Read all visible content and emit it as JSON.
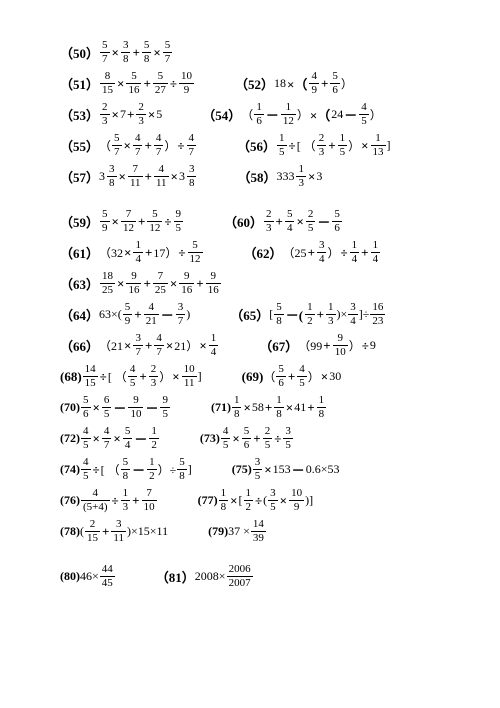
{
  "problems": [
    {
      "n": "50",
      "expr": [
        [
          "f",
          "5",
          "7"
        ],
        [
          "o",
          "×"
        ],
        [
          "f",
          "3",
          "8"
        ],
        [
          "o",
          "+"
        ],
        [
          "f",
          "5",
          "8"
        ],
        [
          "o",
          "×"
        ],
        [
          "f",
          "5",
          "7"
        ]
      ]
    },
    {
      "n": "51",
      "expr": [
        [
          "f",
          "8",
          "15"
        ],
        [
          "o",
          "×"
        ],
        [
          "f",
          "5",
          "16"
        ],
        [
          "o",
          "+"
        ],
        [
          "f",
          "5",
          "27"
        ],
        [
          "o",
          "÷"
        ],
        [
          "f",
          "10",
          "9"
        ]
      ],
      "n2": "52",
      "expr2": [
        [
          "t",
          "18"
        ],
        [
          "o",
          "×（"
        ],
        [
          "f",
          "4",
          "9"
        ],
        [
          "o",
          "+"
        ],
        [
          "f",
          "5",
          "6"
        ],
        [
          "t",
          "）"
        ]
      ]
    },
    {
      "n": "53",
      "expr": [
        [
          "f",
          "2",
          "3"
        ],
        [
          "o",
          "×"
        ],
        [
          "t",
          "7"
        ],
        [
          "o",
          "+"
        ],
        [
          "f",
          "2",
          "3"
        ],
        [
          "o",
          "×"
        ],
        [
          "t",
          "5"
        ]
      ],
      "n2": "54",
      "expr2": [
        [
          "t",
          "（"
        ],
        [
          "f",
          "1",
          "6"
        ],
        [
          "o",
          "－"
        ],
        [
          "f",
          "1",
          "12"
        ],
        [
          "t",
          "）"
        ],
        [
          "o",
          "×（"
        ],
        [
          "t",
          "24"
        ],
        [
          "o",
          "－"
        ],
        [
          "f",
          "4",
          "5"
        ],
        [
          "t",
          "）"
        ]
      ]
    },
    {
      "n": "55",
      "expr": [
        [
          "t",
          "（"
        ],
        [
          "f",
          "5",
          "7"
        ],
        [
          "o",
          "×"
        ],
        [
          "f",
          "4",
          "7"
        ],
        [
          "o",
          "+"
        ],
        [
          "f",
          "4",
          "7"
        ],
        [
          "t",
          "）"
        ],
        [
          "o",
          "÷"
        ],
        [
          "f",
          "4",
          "7"
        ]
      ],
      "n2": "56",
      "expr2": [
        [
          "f",
          "1",
          "5"
        ],
        [
          "o",
          "÷"
        ],
        [
          "t",
          "[ （"
        ],
        [
          "f",
          "2",
          "3"
        ],
        [
          "o",
          "+"
        ],
        [
          "f",
          "1",
          "5"
        ],
        [
          "t",
          "）"
        ],
        [
          "o",
          "×"
        ],
        [
          "f",
          "1",
          "13"
        ],
        [
          "t",
          " ]"
        ]
      ]
    },
    {
      "n": "57",
      "expr": [
        [
          "m",
          "3",
          "3",
          "8"
        ],
        [
          "o",
          "×"
        ],
        [
          "f",
          "7",
          "11"
        ],
        [
          "o",
          "+"
        ],
        [
          "f",
          "4",
          "11"
        ],
        [
          "o",
          "×"
        ],
        [
          "m",
          "3",
          "3",
          "8"
        ]
      ],
      "n2": "58",
      "expr2": [
        [
          "m",
          "333",
          "1",
          "3"
        ],
        [
          "o",
          "×"
        ],
        [
          "t",
          "3"
        ]
      ]
    },
    {
      "gap": true,
      "n": "59",
      "expr": [
        [
          "f",
          "5",
          "9"
        ],
        [
          "o",
          "×"
        ],
        [
          "f",
          "7",
          "12"
        ],
        [
          "o",
          "+"
        ],
        [
          "f",
          "5",
          "12"
        ],
        [
          "o",
          "÷"
        ],
        [
          "f",
          "9",
          "5"
        ]
      ],
      "n2": "60",
      "expr2": [
        [
          "f",
          "2",
          "3"
        ],
        [
          "o",
          "+"
        ],
        [
          "f",
          "5",
          "4"
        ],
        [
          "o",
          "×"
        ],
        [
          "f",
          "2",
          "5"
        ],
        [
          "o",
          "－"
        ],
        [
          "f",
          "5",
          "6"
        ]
      ]
    },
    {
      "n": "61",
      "expr": [
        [
          "t",
          "（32"
        ],
        [
          "o",
          "×"
        ],
        [
          "f",
          "1",
          "4"
        ],
        [
          "o",
          "+"
        ],
        [
          "t",
          "17）"
        ],
        [
          "o",
          "÷"
        ],
        [
          "f",
          "5",
          "12"
        ]
      ],
      "n2": "62",
      "expr2": [
        [
          "t",
          "（25"
        ],
        [
          "o",
          "+"
        ],
        [
          "f",
          "3",
          "4"
        ],
        [
          "t",
          "）"
        ],
        [
          "o",
          "÷"
        ],
        [
          "f",
          "1",
          "4"
        ],
        [
          "o",
          "+"
        ],
        [
          "f",
          "1",
          "4"
        ]
      ]
    },
    {
      "n": "63",
      "expr": [
        [
          "f",
          "18",
          "25"
        ],
        [
          "o",
          "×"
        ],
        [
          "f",
          "9",
          "16"
        ],
        [
          "o",
          "+"
        ],
        [
          "f",
          "7",
          "25"
        ],
        [
          "o",
          "×"
        ],
        [
          "f",
          "9",
          "16"
        ],
        [
          "o",
          "+"
        ],
        [
          "f",
          "9",
          "16"
        ]
      ]
    },
    {
      "n": "64",
      "expr": [
        [
          "t",
          "63×("
        ],
        [
          "f",
          "5",
          "9"
        ],
        [
          "o",
          "+"
        ],
        [
          "f",
          "4",
          "21"
        ],
        [
          "o",
          "－"
        ],
        [
          "f",
          "3",
          "7"
        ],
        [
          "t",
          ")"
        ]
      ],
      "n2": "65",
      "expr2": [
        [
          "t",
          "["
        ],
        [
          "f",
          "5",
          "8"
        ],
        [
          "o",
          "－("
        ],
        [
          "f",
          "1",
          "2"
        ],
        [
          "o",
          "+"
        ],
        [
          "f",
          "1",
          "3"
        ],
        [
          "t",
          ")×"
        ],
        [
          "f",
          "3",
          "4"
        ],
        [
          "t",
          "]÷"
        ],
        [
          "f",
          "16",
          "23"
        ]
      ]
    },
    {
      "n": "66",
      "expr": [
        [
          "t",
          "（21"
        ],
        [
          "o",
          "×"
        ],
        [
          "f",
          "3",
          "7"
        ],
        [
          "o",
          "+"
        ],
        [
          "f",
          "4",
          "7"
        ],
        [
          "o",
          "×"
        ],
        [
          "t",
          "21）"
        ],
        [
          "o",
          "×"
        ],
        [
          "f",
          "1",
          "4"
        ]
      ],
      "n2": "67",
      "expr2": [
        [
          "t",
          "（99"
        ],
        [
          "o",
          "+"
        ],
        [
          "f",
          "9",
          "10"
        ],
        [
          "t",
          "）"
        ],
        [
          "o",
          "÷"
        ],
        [
          "t",
          "9"
        ]
      ]
    },
    {
      "n": "68",
      "pstyle": "paren",
      "expr": [
        [
          "f",
          "14",
          "15"
        ],
        [
          "o",
          "÷"
        ],
        [
          "t",
          "[ （"
        ],
        [
          "f",
          "4",
          "5"
        ],
        [
          "o",
          "+"
        ],
        [
          "f",
          "2",
          "3"
        ],
        [
          "t",
          "）"
        ],
        [
          "o",
          "×"
        ],
        [
          "f",
          "10",
          "11"
        ],
        [
          "t",
          " ]"
        ]
      ],
      "n2": "69",
      "p2style": "paren",
      "expr2": [
        [
          "t",
          "（"
        ],
        [
          "f",
          "5",
          "6"
        ],
        [
          "o",
          "+"
        ],
        [
          "f",
          "4",
          "5"
        ],
        [
          "t",
          "）"
        ],
        [
          "o",
          "×"
        ],
        [
          "t",
          "30"
        ]
      ]
    },
    {
      "n": "70",
      "pstyle": "small",
      "expr": [
        [
          "f",
          "5",
          "6"
        ],
        [
          "o",
          "×"
        ],
        [
          "f",
          "6",
          "5"
        ],
        [
          "o",
          "－"
        ],
        [
          "f",
          "9",
          "10"
        ],
        [
          "o",
          "－"
        ],
        [
          "f",
          "9",
          "5"
        ]
      ],
      "n2": "71",
      "p2style": "small",
      "expr2": [
        [
          "f",
          "1",
          "8"
        ],
        [
          "o",
          "×"
        ],
        [
          "t",
          "58"
        ],
        [
          "o",
          "+"
        ],
        [
          "f",
          "1",
          "8"
        ],
        [
          "o",
          "×"
        ],
        [
          "t",
          "41"
        ],
        [
          "o",
          "+"
        ],
        [
          "f",
          "1",
          "8"
        ]
      ]
    },
    {
      "n": "72",
      "pstyle": "small",
      "expr": [
        [
          "f",
          "4",
          "5"
        ],
        [
          "o",
          "×"
        ],
        [
          "f",
          "4",
          "7"
        ],
        [
          "o",
          "×"
        ],
        [
          "f",
          "5",
          "4"
        ],
        [
          "o",
          "－"
        ],
        [
          "f",
          "1",
          "2"
        ]
      ],
      "n2": "73",
      "p2style": "small",
      "expr2": [
        [
          "f",
          "4",
          "5"
        ],
        [
          "o",
          "×"
        ],
        [
          "f",
          "5",
          "6"
        ],
        [
          "o",
          "+"
        ],
        [
          "f",
          "2",
          "5"
        ],
        [
          "o",
          "÷"
        ],
        [
          "f",
          "3",
          "5"
        ]
      ]
    },
    {
      "n": "74",
      "pstyle": "small",
      "expr": [
        [
          "f",
          "4",
          "5"
        ],
        [
          "o",
          "÷"
        ],
        [
          "t",
          "[ （"
        ],
        [
          "f",
          "5",
          "8"
        ],
        [
          "o",
          "－"
        ],
        [
          "f",
          "1",
          "2"
        ],
        [
          "t",
          "）÷"
        ],
        [
          "f",
          "5",
          "8"
        ],
        [
          "t",
          " ]"
        ]
      ],
      "n2": "75",
      "p2style": "small",
      "expr2": [
        [
          "f",
          "3",
          "5"
        ],
        [
          "o",
          "×"
        ],
        [
          "t",
          "153"
        ],
        [
          "o",
          "－"
        ],
        [
          "t",
          "0.6×53"
        ]
      ]
    },
    {
      "n": "76",
      "pstyle": "small",
      "expr": [
        [
          "f",
          "4",
          "(5+4)"
        ],
        [
          "o",
          "÷"
        ],
        [
          "f",
          "1",
          "3"
        ],
        [
          "o",
          "+"
        ],
        [
          "f",
          "7",
          "10"
        ]
      ],
      "n2": "77",
      "p2style": "small",
      "expr2": [
        [
          "f",
          "1",
          "8"
        ],
        [
          "o",
          "×"
        ],
        [
          "t",
          "["
        ],
        [
          "f",
          "1",
          "2"
        ],
        [
          "o",
          "÷"
        ],
        [
          "t",
          "("
        ],
        [
          "f",
          "3",
          "5"
        ],
        [
          "o",
          "×"
        ],
        [
          "f",
          "10",
          "9"
        ],
        [
          "t",
          ")]"
        ]
      ]
    },
    {
      "n": "78",
      "pstyle": "small",
      "expr": [
        [
          "t",
          "("
        ],
        [
          "f",
          "2",
          "15"
        ],
        [
          "o",
          "+"
        ],
        [
          "f",
          "3",
          "11"
        ],
        [
          "t",
          ")×15×11"
        ]
      ],
      "n2": "79",
      "p2style": "small",
      "expr2": [
        [
          "t",
          "37 ×"
        ],
        [
          "f",
          "14",
          "39"
        ]
      ]
    },
    {
      "gap": true,
      "n": "80",
      "pstyle": "small",
      "expr": [
        [
          "t",
          "46×"
        ],
        [
          "f",
          "44",
          "45"
        ]
      ],
      "n2": "81",
      "expr2": [
        [
          "t",
          "2008×"
        ],
        [
          "f",
          "2006",
          "2007"
        ]
      ]
    }
  ]
}
